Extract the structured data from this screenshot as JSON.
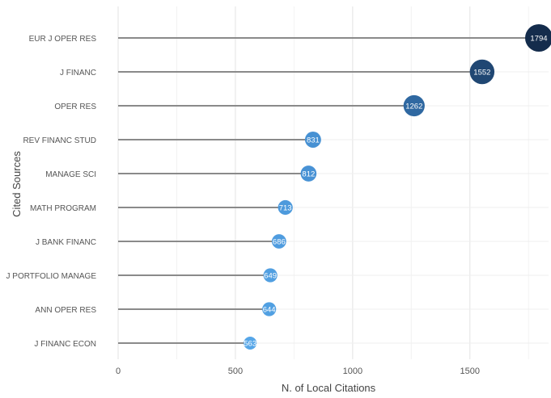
{
  "chart_data": {
    "type": "lollipop",
    "orientation": "horizontal",
    "categories": [
      "EUR J OPER RES",
      "J FINANC",
      "OPER RES",
      "REV FINANC STUD",
      "MANAGE SCI",
      "MATH PROGRAM",
      "J BANK FINANC",
      "J PORTFOLIO MANAGE",
      "ANN OPER RES",
      "J FINANC ECON"
    ],
    "values": [
      1794,
      1552,
      1262,
      831,
      812,
      713,
      686,
      649,
      644,
      563
    ],
    "xlabel": "N. of Local Citations",
    "ylabel": "Cited Sources",
    "xlim": [
      0,
      1794
    ],
    "xticks": [
      0,
      500,
      1000,
      1500
    ],
    "grid": true,
    "color_scale": {
      "low": "#56a6e8",
      "mid": "#3a7fc2",
      "high": "#142c4c"
    }
  }
}
